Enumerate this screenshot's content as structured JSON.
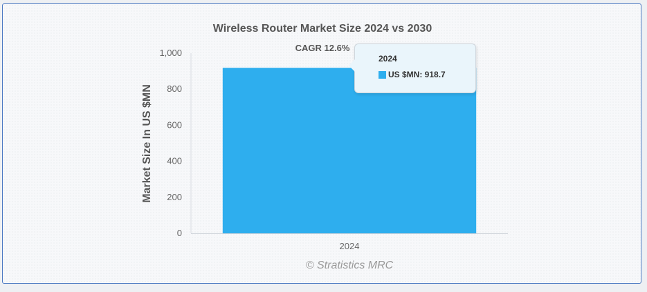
{
  "chart_data": {
    "type": "bar",
    "title": "Wireless Router Market Size 2024 vs 2030",
    "categories": [
      "2024"
    ],
    "series": [
      {
        "name": "US $MN",
        "values": [
          918.7
        ],
        "color": "#2eaeee"
      }
    ],
    "xlabel": "",
    "ylabel": "Market Size In US $MN",
    "ylim": [
      0,
      1000
    ],
    "yticks": [
      0,
      200,
      400,
      600,
      800,
      1000
    ],
    "ytick_labels": [
      "0",
      "200",
      "400",
      "600",
      "800",
      "1,000"
    ],
    "annotation": "CAGR 12.6%",
    "grid": false,
    "legend": "none"
  },
  "tooltip": {
    "title": "2024",
    "label": "US $MN: 918.7"
  },
  "credit": "© Stratistics MRC"
}
